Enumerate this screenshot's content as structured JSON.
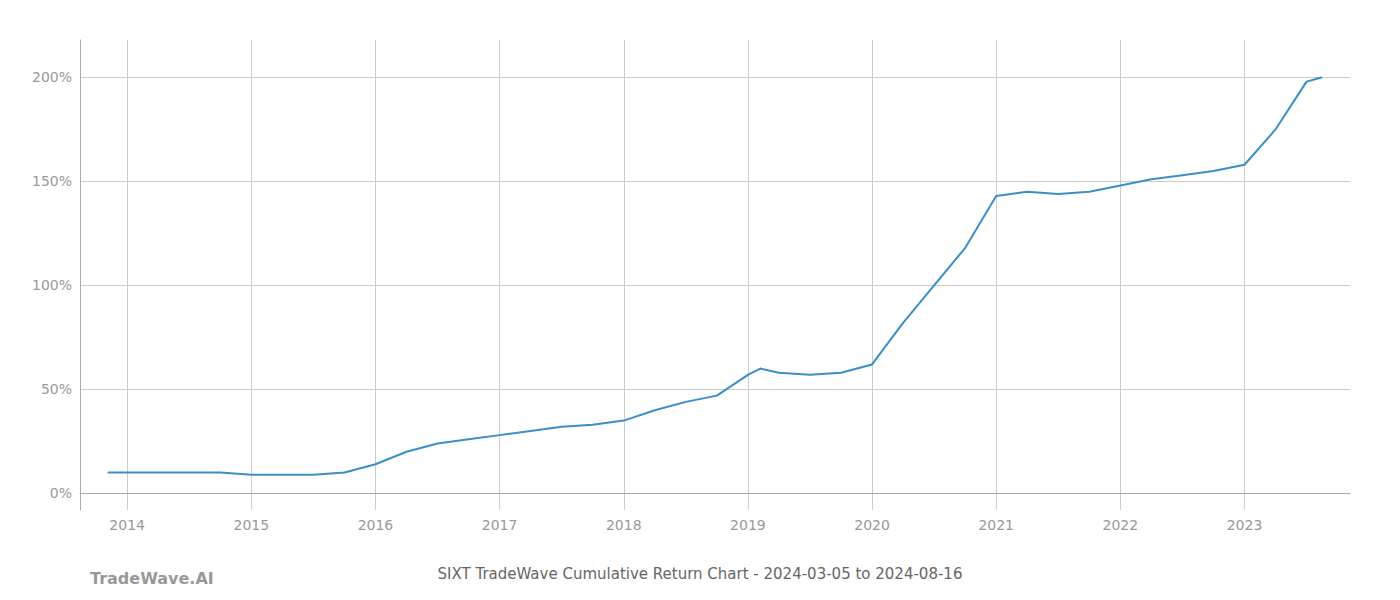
{
  "chart_data": {
    "type": "line",
    "title": "SIXT TradeWave Cumulative Return Chart - 2024-03-05 to 2024-08-16",
    "annotations": [
      "TradeWave.AI"
    ],
    "x": [
      2013.85,
      2014.0,
      2014.25,
      2014.5,
      2014.75,
      2015.0,
      2015.25,
      2015.5,
      2015.75,
      2016.0,
      2016.25,
      2016.5,
      2016.75,
      2017.0,
      2017.25,
      2017.5,
      2017.75,
      2018.0,
      2018.25,
      2018.5,
      2018.75,
      2019.0,
      2019.1,
      2019.25,
      2019.5,
      2019.75,
      2020.0,
      2020.25,
      2020.5,
      2020.75,
      2021.0,
      2021.25,
      2021.5,
      2021.75,
      2022.0,
      2022.25,
      2022.5,
      2022.75,
      2023.0,
      2023.25,
      2023.5,
      2023.62
    ],
    "values": [
      10,
      10,
      10,
      10,
      10,
      9,
      9,
      9,
      10,
      14,
      20,
      24,
      26,
      28,
      30,
      32,
      33,
      35,
      40,
      44,
      47,
      57,
      60,
      58,
      57,
      58,
      62,
      82,
      100,
      118,
      143,
      145,
      144,
      145,
      148,
      151,
      153,
      155,
      158,
      175,
      198,
      200
    ],
    "color": "#3a8fc7",
    "xlim": [
      2013.62,
      2023.85
    ],
    "xticks": [
      2014,
      2015,
      2016,
      2017,
      2018,
      2019,
      2020,
      2021,
      2022,
      2023
    ],
    "ylim": [
      -8,
      218
    ],
    "yticks": [
      {
        "value": 0,
        "label": "0%"
      },
      {
        "value": 50,
        "label": "50%"
      },
      {
        "value": 100,
        "label": "100%"
      },
      {
        "value": 150,
        "label": "150%"
      },
      {
        "value": 200,
        "label": "200%"
      }
    ],
    "grid": true
  }
}
